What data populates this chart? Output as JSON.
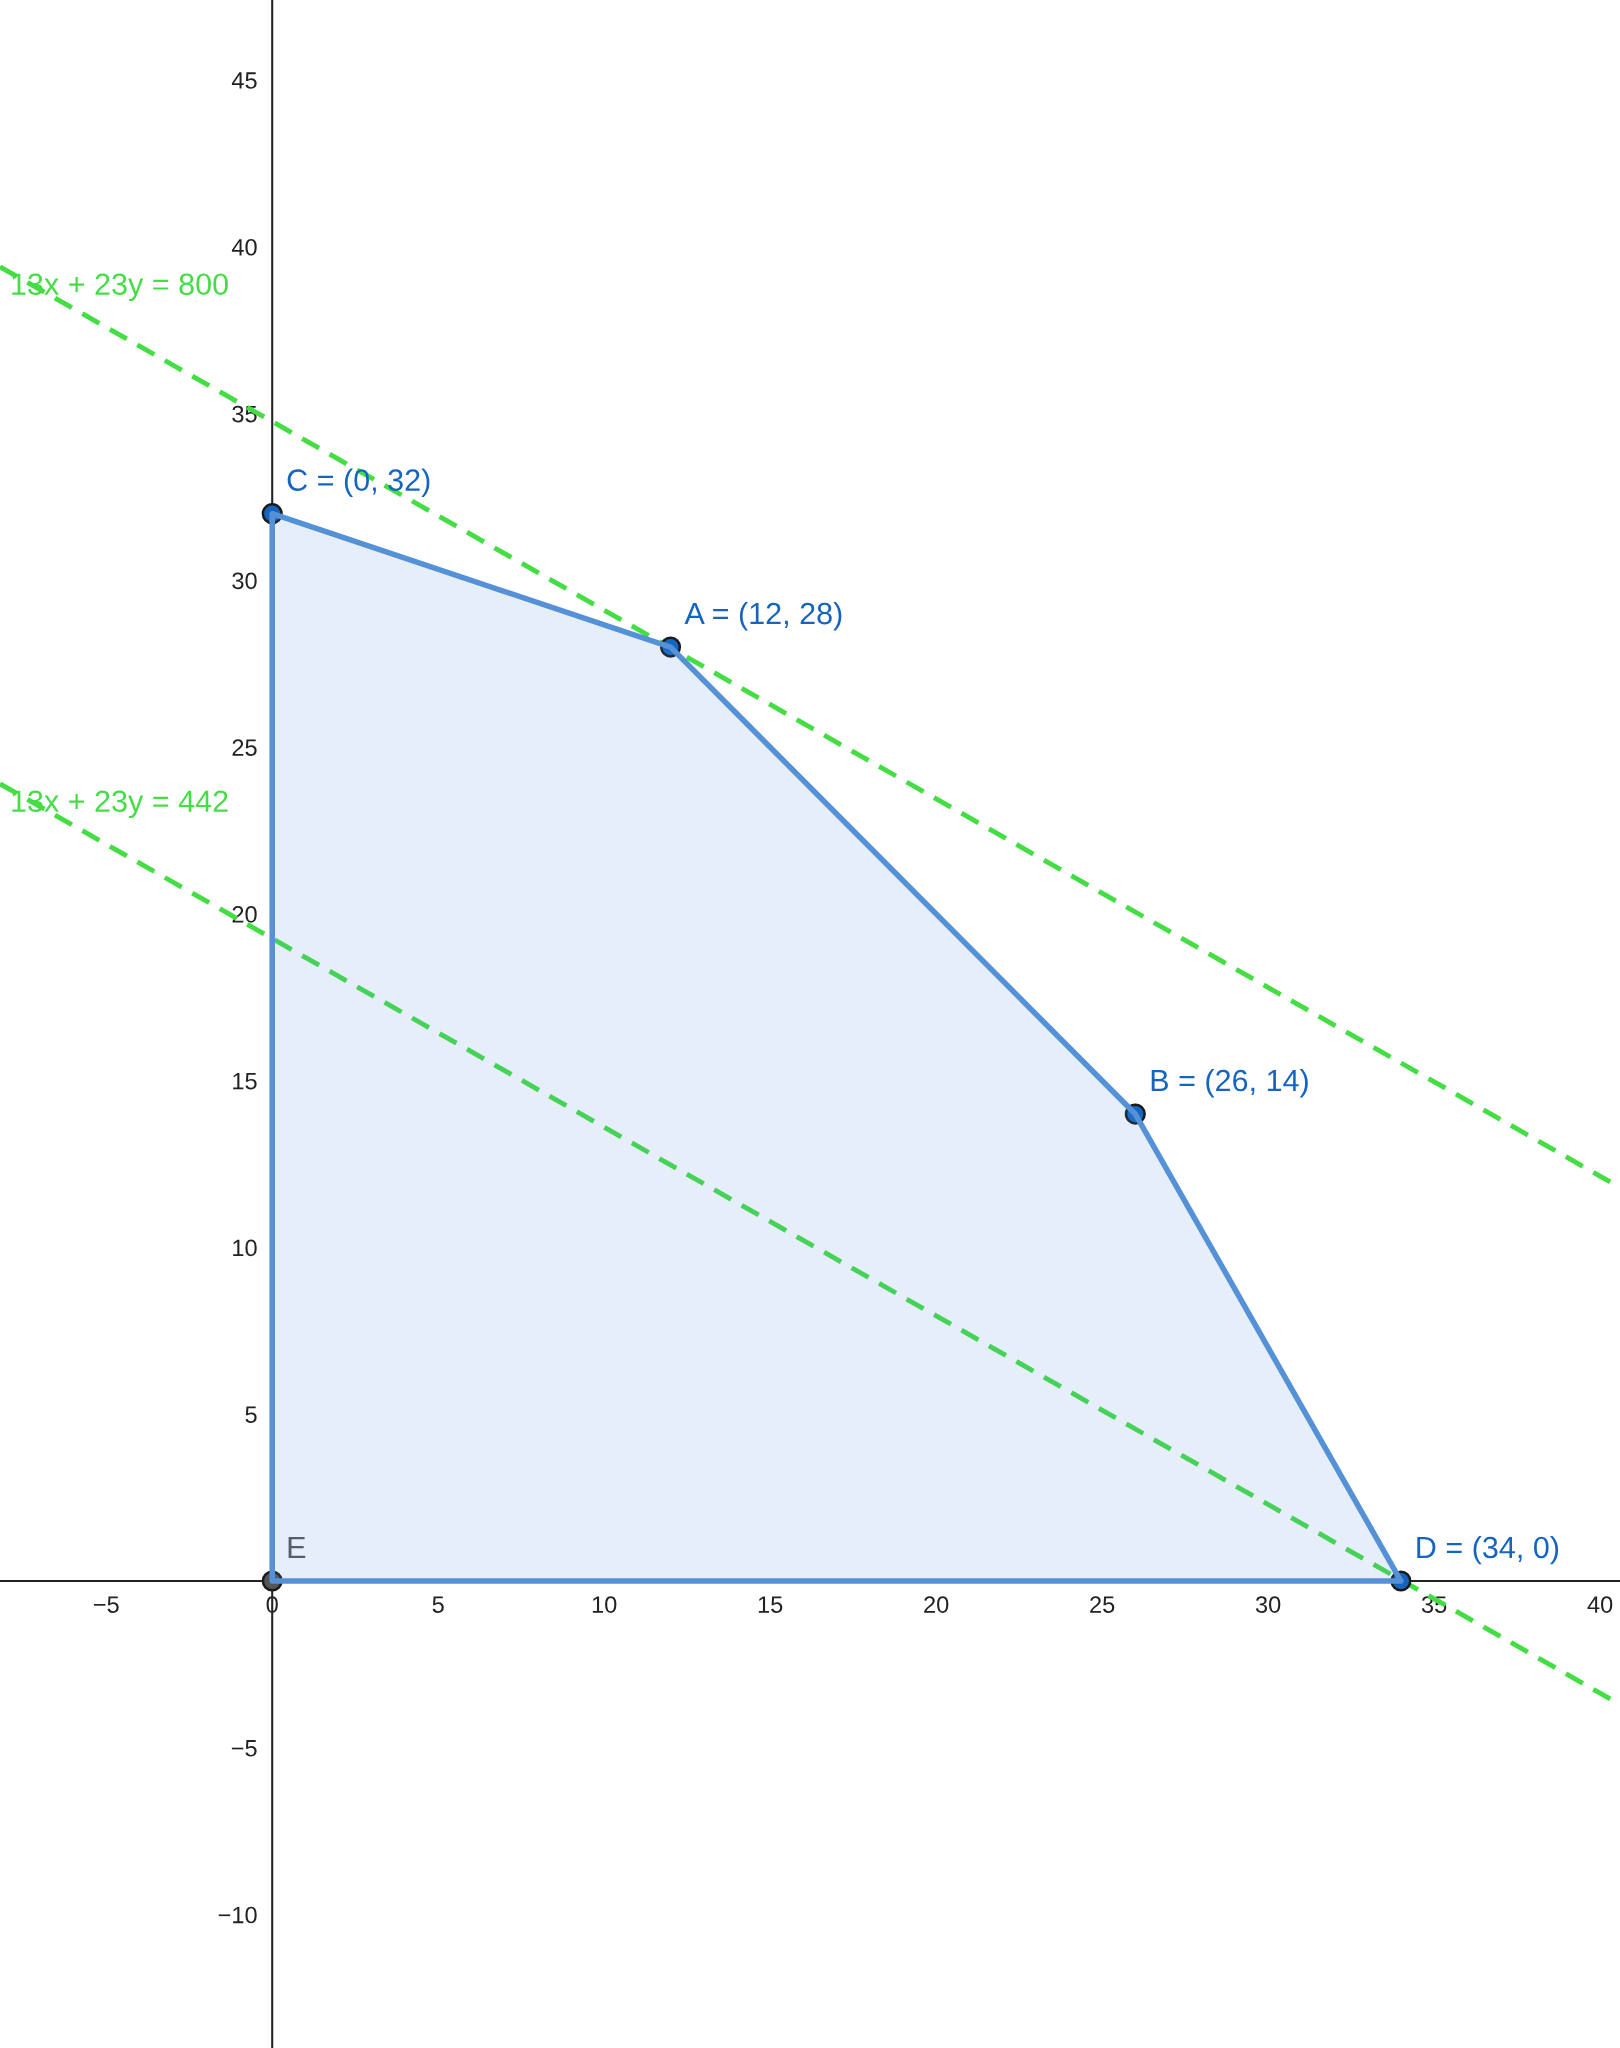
{
  "chart_data": {
    "type": "line",
    "xlim": [
      -8.2,
      40.6
    ],
    "ylim": [
      -14.0,
      47.4
    ],
    "xticks": [
      -5,
      0,
      5,
      10,
      15,
      20,
      25,
      30,
      35,
      40
    ],
    "yticks": [
      -10,
      -5,
      5,
      10,
      15,
      20,
      25,
      30,
      35,
      40,
      45
    ],
    "grid": false,
    "series": [
      {
        "type": "area",
        "color": "#5591d6",
        "x": [
          0,
          12,
          26,
          34
        ],
        "values": [
          32,
          28,
          14,
          0
        ]
      },
      {
        "name": "13x + 23y = 800",
        "color": "#44dd44",
        "line_style": "dashed",
        "x": [
          -8.2,
          40.6
        ],
        "values": [
          39.4,
          11.8
        ]
      },
      {
        "name": "13x + 23y = 442",
        "color": "#44dd44",
        "line_style": "dashed",
        "x": [
          -8.2,
          40.6
        ],
        "values": [
          23.9,
          -3.7
        ]
      },
      {
        "type": "scatter",
        "marker": "circle",
        "colors": [
          "#1565c0",
          "#1565c0",
          "#1565c0",
          "#1565c0",
          "#555555"
        ],
        "x": [
          12,
          26,
          0,
          34,
          0
        ],
        "values": [
          28,
          14,
          32,
          0,
          0
        ]
      }
    ],
    "annotations": [
      {
        "text": "A = (12, 28)",
        "x": 12,
        "y": 28
      },
      {
        "text": "B = (26, 14)",
        "x": 26,
        "y": 14
      },
      {
        "text": "C = (0, 32)",
        "x": 0,
        "y": 32
      },
      {
        "text": "D = (34, 0)",
        "x": 34,
        "y": 0
      },
      {
        "text": "E",
        "x": 0,
        "y": 0
      }
    ]
  }
}
